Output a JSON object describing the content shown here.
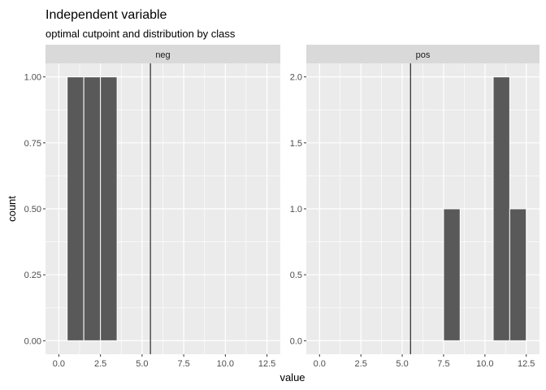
{
  "chart_data": {
    "type": "bar",
    "title": "Independent variable",
    "subtitle": "optimal cutpoint and distribution by class",
    "xlabel": "value",
    "ylabel": "count",
    "xlim": [
      0,
      12.5
    ],
    "x_ticks": [
      0,
      2.5,
      5,
      7.5,
      10,
      12.5
    ],
    "x_tick_labels": [
      "0.0",
      "2.5",
      "5.0",
      "7.5",
      "10.0",
      "12.5"
    ],
    "grid": true,
    "bar_color": "#595959",
    "panel_background": "#ebebeb",
    "strip_background": "#d9d9d9",
    "cutpoint": 5.5,
    "panels": [
      {
        "strip": "neg",
        "ylim": [
          0,
          1
        ],
        "y_ticks": [
          0,
          0.25,
          0.5,
          0.75,
          1.0
        ],
        "y_tick_labels": [
          "0.00",
          "0.25",
          "0.50",
          "0.75",
          "1.00"
        ],
        "bars": [
          {
            "x": 1,
            "count": 1
          },
          {
            "x": 2,
            "count": 1
          },
          {
            "x": 3,
            "count": 1
          }
        ]
      },
      {
        "strip": "pos",
        "ylim": [
          0,
          2
        ],
        "y_ticks": [
          0,
          0.5,
          1.0,
          1.5,
          2.0
        ],
        "y_tick_labels": [
          "0.0",
          "0.5",
          "1.0",
          "1.5",
          "2.0"
        ],
        "bars": [
          {
            "x": 8,
            "count": 1
          },
          {
            "x": 11,
            "count": 2
          },
          {
            "x": 12,
            "count": 1
          }
        ]
      }
    ]
  }
}
